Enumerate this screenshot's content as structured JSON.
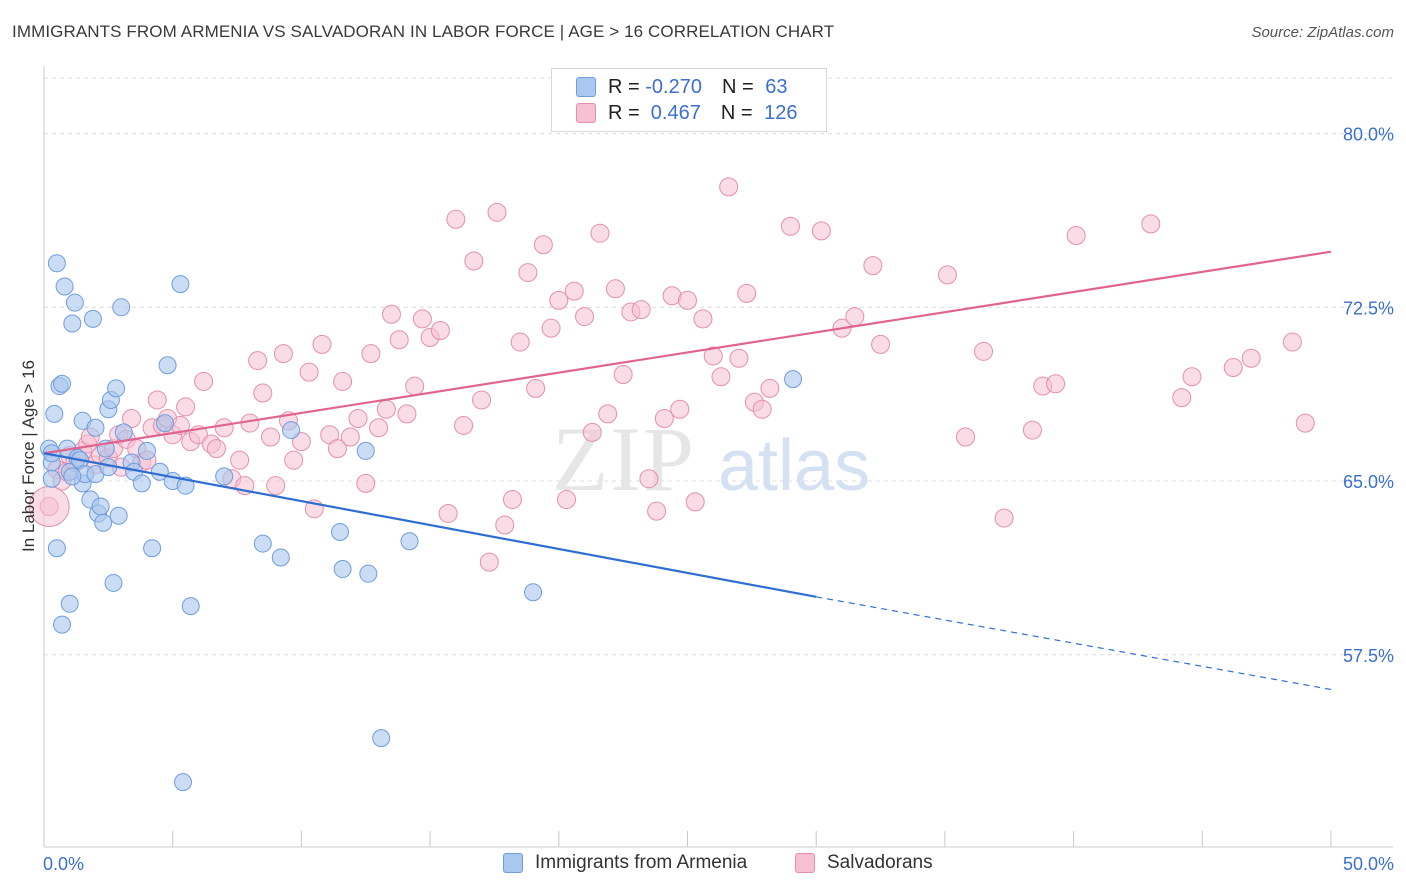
{
  "header": {
    "title": "IMMIGRANTS FROM ARMENIA VS SALVADORAN IN LABOR FORCE | AGE > 16 CORRELATION CHART",
    "source": "Source: ZipAtlas.com"
  },
  "watermark": {
    "zip": "ZIP",
    "atlas": "atlas"
  },
  "legend": {
    "rows": [
      {
        "r_label": "R = ",
        "r_value": "-0.270",
        "n_label": "N = ",
        "n_value": "63"
      },
      {
        "r_label": "R = ",
        "r_value": " 0.467",
        "n_label": "N = ",
        "n_value": "126"
      }
    ]
  },
  "bottom_legend": {
    "series1": "Immigrants from Armenia",
    "series2": "Salvadorans"
  },
  "colors": {
    "blue_fill": "#a9c7ef",
    "blue_stroke": "#6f9ddc",
    "blue_line": "#2f6fd1",
    "pink_fill": "#f6bfd2",
    "pink_stroke": "#e48fae",
    "pink_line": "#e0648f",
    "tick_label": "#3b6fd0",
    "grid": "#dcdcdc"
  },
  "chart_data": {
    "type": "scatter",
    "title": "IMMIGRANTS FROM ARMENIA VS SALVADORAN IN LABOR FORCE | AGE > 16 CORRELATION CHART",
    "xlabel": "",
    "ylabel": "In Labor Force | Age > 16",
    "xlim": [
      0,
      50
    ],
    "ylim": [
      49.2,
      82.4
    ],
    "x_tick_labels": [
      {
        "value": 0,
        "label": "0.0%"
      },
      {
        "value": 50,
        "label": "50.0%"
      }
    ],
    "y_tick_labels": [
      {
        "value": 57.5,
        "label": "57.5%"
      },
      {
        "value": 65.0,
        "label": "65.0%"
      },
      {
        "value": 72.5,
        "label": "72.5%"
      },
      {
        "value": 80.0,
        "label": "80.0%"
      }
    ],
    "grid": true,
    "legend_position": "top-center",
    "series": [
      {
        "name": "Immigrants from Armenia",
        "color": "#a9c7ef",
        "R": -0.27,
        "N": 63,
        "trend": {
          "x1": 0,
          "y1": 66.2,
          "x2": 30,
          "y2": 60.0,
          "dash_to_x": 50,
          "dash_to_y": 56.0
        },
        "points": [
          [
            0.2,
            66.4
          ],
          [
            0.3,
            65.8
          ],
          [
            0.3,
            65.1
          ],
          [
            0.4,
            67.9
          ],
          [
            0.5,
            74.4
          ],
          [
            0.6,
            69.1
          ],
          [
            0.7,
            69.2
          ],
          [
            0.8,
            73.4
          ],
          [
            0.9,
            66.4
          ],
          [
            1.0,
            65.4
          ],
          [
            1.1,
            71.8
          ],
          [
            1.2,
            72.7
          ],
          [
            1.3,
            66.0
          ],
          [
            1.4,
            65.9
          ],
          [
            1.5,
            67.6
          ],
          [
            1.5,
            64.9
          ],
          [
            1.6,
            65.3
          ],
          [
            1.8,
            64.2
          ],
          [
            1.9,
            72.0
          ],
          [
            2.0,
            67.3
          ],
          [
            2.1,
            63.6
          ],
          [
            2.2,
            63.9
          ],
          [
            2.3,
            63.2
          ],
          [
            2.4,
            66.4
          ],
          [
            2.5,
            68.1
          ],
          [
            2.6,
            68.5
          ],
          [
            2.8,
            69.0
          ],
          [
            2.9,
            63.5
          ],
          [
            3.0,
            72.5
          ],
          [
            3.1,
            67.1
          ],
          [
            3.4,
            65.8
          ],
          [
            3.5,
            65.4
          ],
          [
            3.8,
            64.9
          ],
          [
            4.0,
            66.3
          ],
          [
            4.2,
            62.1
          ],
          [
            4.5,
            65.4
          ],
          [
            4.7,
            67.5
          ],
          [
            4.8,
            70.0
          ],
          [
            5.0,
            65.0
          ],
          [
            5.3,
            73.5
          ],
          [
            5.5,
            64.8
          ],
          [
            5.7,
            59.6
          ],
          [
            0.5,
            62.1
          ],
          [
            0.7,
            58.8
          ],
          [
            1.0,
            59.7
          ],
          [
            2.7,
            60.6
          ],
          [
            7.0,
            65.2
          ],
          [
            8.5,
            62.3
          ],
          [
            9.2,
            61.7
          ],
          [
            9.6,
            67.2
          ],
          [
            11.5,
            62.8
          ],
          [
            11.6,
            61.2
          ],
          [
            12.5,
            66.3
          ],
          [
            12.6,
            61.0
          ],
          [
            13.1,
            53.9
          ],
          [
            14.2,
            62.4
          ],
          [
            19.0,
            60.2
          ],
          [
            29.1,
            69.4
          ],
          [
            5.4,
            52.0
          ],
          [
            0.3,
            66.2
          ],
          [
            1.1,
            65.2
          ],
          [
            2.0,
            65.3
          ],
          [
            2.5,
            65.6
          ]
        ]
      },
      {
        "name": "Salvadorans",
        "color": "#f6bfd2",
        "R": 0.467,
        "N": 126,
        "trend": {
          "x1": 0,
          "y1": 66.2,
          "x2": 50,
          "y2": 74.9
        },
        "points": [
          [
            0.2,
            63.9
          ],
          [
            0.5,
            65.5
          ],
          [
            0.7,
            65.0
          ],
          [
            0.9,
            65.4
          ],
          [
            1.0,
            66.1
          ],
          [
            1.2,
            65.8
          ],
          [
            1.5,
            66.3
          ],
          [
            1.7,
            66.6
          ],
          [
            1.8,
            66.9
          ],
          [
            2.0,
            65.7
          ],
          [
            2.2,
            66.1
          ],
          [
            2.5,
            66.0
          ],
          [
            2.7,
            66.4
          ],
          [
            2.9,
            67.0
          ],
          [
            3.0,
            65.6
          ],
          [
            3.2,
            66.8
          ],
          [
            3.4,
            67.7
          ],
          [
            3.6,
            66.4
          ],
          [
            3.8,
            65.8
          ],
          [
            4.0,
            65.9
          ],
          [
            4.2,
            67.3
          ],
          [
            4.4,
            68.5
          ],
          [
            4.6,
            67.4
          ],
          [
            4.8,
            67.7
          ],
          [
            5.0,
            67.0
          ],
          [
            5.3,
            67.4
          ],
          [
            5.5,
            68.2
          ],
          [
            5.7,
            66.7
          ],
          [
            6.0,
            67.0
          ],
          [
            6.2,
            69.3
          ],
          [
            6.5,
            66.6
          ],
          [
            6.7,
            66.4
          ],
          [
            7.0,
            67.3
          ],
          [
            7.3,
            65.1
          ],
          [
            7.6,
            65.9
          ],
          [
            7.8,
            64.8
          ],
          [
            8.0,
            67.5
          ],
          [
            8.3,
            70.2
          ],
          [
            8.5,
            68.8
          ],
          [
            8.8,
            66.9
          ],
          [
            9.0,
            64.8
          ],
          [
            9.3,
            70.5
          ],
          [
            9.5,
            67.6
          ],
          [
            9.7,
            65.9
          ],
          [
            10.0,
            66.7
          ],
          [
            10.3,
            69.7
          ],
          [
            10.5,
            63.8
          ],
          [
            10.8,
            70.9
          ],
          [
            11.1,
            67.0
          ],
          [
            11.4,
            66.4
          ],
          [
            11.6,
            69.3
          ],
          [
            11.9,
            66.9
          ],
          [
            12.2,
            67.7
          ],
          [
            12.5,
            64.9
          ],
          [
            12.7,
            70.5
          ],
          [
            13.0,
            67.3
          ],
          [
            13.3,
            68.1
          ],
          [
            13.5,
            72.2
          ],
          [
            13.8,
            71.1
          ],
          [
            14.1,
            67.9
          ],
          [
            14.4,
            69.1
          ],
          [
            14.7,
            72.0
          ],
          [
            15.0,
            71.2
          ],
          [
            15.4,
            71.5
          ],
          [
            15.7,
            63.6
          ],
          [
            16.0,
            76.3
          ],
          [
            16.3,
            67.4
          ],
          [
            16.7,
            74.5
          ],
          [
            17.0,
            68.5
          ],
          [
            17.3,
            61.5
          ],
          [
            17.6,
            76.6
          ],
          [
            17.9,
            63.1
          ],
          [
            18.2,
            64.2
          ],
          [
            18.5,
            71.0
          ],
          [
            18.8,
            74.0
          ],
          [
            19.1,
            69.0
          ],
          [
            19.4,
            75.2
          ],
          [
            19.7,
            71.6
          ],
          [
            20.0,
            72.8
          ],
          [
            20.3,
            64.2
          ],
          [
            20.6,
            73.2
          ],
          [
            21.0,
            72.1
          ],
          [
            21.3,
            67.1
          ],
          [
            21.6,
            75.7
          ],
          [
            21.9,
            67.9
          ],
          [
            22.2,
            73.3
          ],
          [
            22.5,
            69.6
          ],
          [
            22.8,
            72.3
          ],
          [
            23.2,
            72.4
          ],
          [
            23.5,
            65.1
          ],
          [
            23.8,
            63.7
          ],
          [
            24.1,
            67.7
          ],
          [
            24.4,
            73.0
          ],
          [
            24.7,
            68.1
          ],
          [
            25.0,
            72.8
          ],
          [
            25.3,
            64.1
          ],
          [
            25.6,
            72.0
          ],
          [
            26.0,
            70.4
          ],
          [
            26.3,
            69.5
          ],
          [
            26.6,
            77.7
          ],
          [
            27.0,
            70.3
          ],
          [
            27.3,
            73.1
          ],
          [
            27.6,
            68.4
          ],
          [
            27.9,
            68.1
          ],
          [
            28.2,
            69.0
          ],
          [
            29.0,
            76.0
          ],
          [
            30.2,
            75.8
          ],
          [
            31.0,
            71.6
          ],
          [
            31.5,
            72.1
          ],
          [
            32.2,
            74.3
          ],
          [
            32.5,
            70.9
          ],
          [
            35.1,
            73.9
          ],
          [
            35.8,
            66.9
          ],
          [
            36.5,
            70.6
          ],
          [
            38.8,
            69.1
          ],
          [
            40.1,
            75.6
          ],
          [
            43.0,
            76.1
          ],
          [
            44.2,
            68.6
          ],
          [
            44.6,
            69.5
          ],
          [
            46.2,
            69.9
          ],
          [
            46.9,
            70.3
          ],
          [
            48.5,
            71.0
          ],
          [
            49.0,
            67.5
          ],
          [
            37.3,
            63.4
          ],
          [
            38.4,
            67.2
          ],
          [
            39.3,
            69.2
          ]
        ]
      }
    ]
  }
}
